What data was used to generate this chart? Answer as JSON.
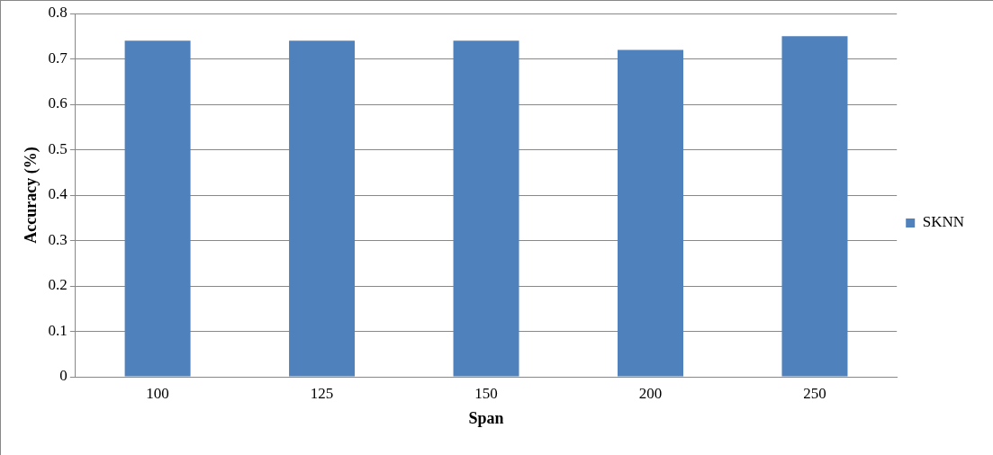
{
  "chart_data": {
    "type": "bar",
    "xlabel": "Span",
    "ylabel": "Accuracy (%)",
    "categories": [
      "100",
      "125",
      "150",
      "200",
      "250"
    ],
    "series": [
      {
        "name": "SKNN",
        "color": "#4f81bd",
        "values": [
          0.74,
          0.74,
          0.74,
          0.72,
          0.75
        ]
      }
    ],
    "ylim": [
      0,
      0.8
    ],
    "yticks": [
      0,
      0.1,
      0.2,
      0.3,
      0.4,
      0.5,
      0.6,
      0.7,
      0.8
    ],
    "grid": "y",
    "legend": "right"
  }
}
